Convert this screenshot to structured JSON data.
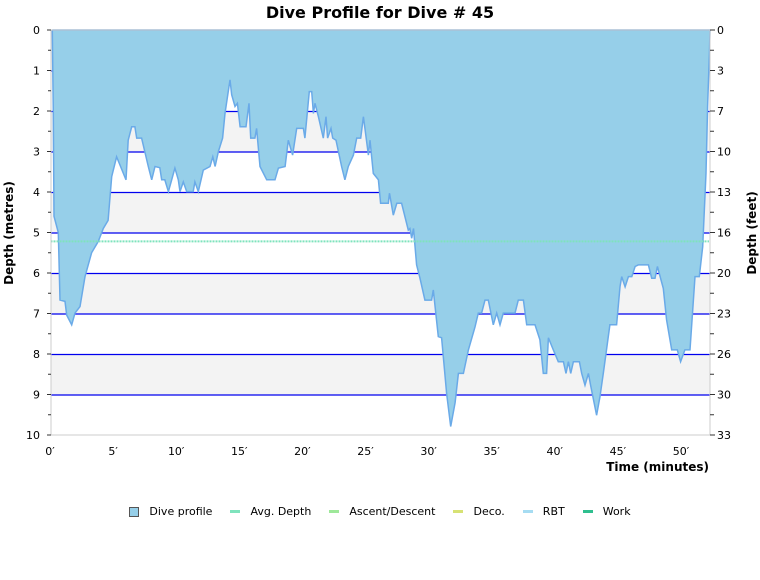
{
  "chart_data": {
    "type": "area",
    "title": "Dive Profile for Dive # 45",
    "xlabel": "Time (minutes)",
    "ylabel": "Depth (metres)",
    "ylabel_right": "Depth (feet)",
    "xlim": [
      0,
      52.3
    ],
    "ylim": [
      0,
      10
    ],
    "y_inverted": true,
    "grid": true,
    "x_ticks": [
      0,
      5,
      10,
      15,
      20,
      25,
      30,
      35,
      40,
      45,
      50
    ],
    "x_tick_labels": [
      "0′",
      "5′",
      "10′",
      "15′",
      "20′",
      "25′",
      "30′",
      "35′",
      "40′",
      "45′",
      "50′"
    ],
    "y_ticks": [
      0,
      1,
      2,
      3,
      4,
      5,
      6,
      7,
      8,
      9,
      10
    ],
    "y_tick_labels": [
      "0",
      "1",
      "2",
      "3",
      "4",
      "5",
      "6",
      "7",
      "8",
      "9",
      "10"
    ],
    "y_right_tick_labels": [
      "0",
      "3",
      "7",
      "10",
      "13",
      "16",
      "20",
      "23",
      "26",
      "30",
      "33"
    ],
    "avg_depth": 5.22,
    "legend_position": "bottom",
    "legend": [
      {
        "label": "Dive profile",
        "color": "#96cfe9",
        "kind": "box"
      },
      {
        "label": "Avg. Depth",
        "color": "#7fe3bd",
        "kind": "line"
      },
      {
        "label": "Ascent/Descent",
        "color": "#9ee89a",
        "kind": "line"
      },
      {
        "label": "Deco.",
        "color": "#d7e274",
        "kind": "line"
      },
      {
        "label": "RBT",
        "color": "#a6dcf2",
        "kind": "line"
      },
      {
        "label": "Work",
        "color": "#2fbf8f",
        "kind": "line"
      }
    ],
    "colors": {
      "fill": "#96cfe9",
      "line": "#6aaae8",
      "grid": "#0000ee",
      "band": "#f3f3f3",
      "avg": "#7fe3bd"
    },
    "series": [
      {
        "name": "Dive profile",
        "points": [
          [
            0.18,
            0
          ],
          [
            0.26,
            2.05
          ],
          [
            0.32,
            4.6
          ],
          [
            0.66,
            5.0
          ],
          [
            0.79,
            6.67
          ],
          [
            1.19,
            6.7
          ],
          [
            1.32,
            7.04
          ],
          [
            1.72,
            7.28
          ],
          [
            1.98,
            6.99
          ],
          [
            2.38,
            6.83
          ],
          [
            2.77,
            6.09
          ],
          [
            3.3,
            5.5
          ],
          [
            3.83,
            5.22
          ],
          [
            4.22,
            4.9
          ],
          [
            4.6,
            4.7
          ],
          [
            4.89,
            3.62
          ],
          [
            5.28,
            3.13
          ],
          [
            5.5,
            3.3
          ],
          [
            6.02,
            3.7
          ],
          [
            6.2,
            2.72
          ],
          [
            6.47,
            2.39
          ],
          [
            6.73,
            2.39
          ],
          [
            6.87,
            2.67
          ],
          [
            7.26,
            2.67
          ],
          [
            7.79,
            3.37
          ],
          [
            8.06,
            3.7
          ],
          [
            8.32,
            3.37
          ],
          [
            8.7,
            3.4
          ],
          [
            8.85,
            3.7
          ],
          [
            9.1,
            3.7
          ],
          [
            9.38,
            3.99
          ],
          [
            9.64,
            3.7
          ],
          [
            9.9,
            3.41
          ],
          [
            10.17,
            3.7
          ],
          [
            10.3,
            3.99
          ],
          [
            10.56,
            3.75
          ],
          [
            10.83,
            3.99
          ],
          [
            11.35,
            3.99
          ],
          [
            11.48,
            3.75
          ],
          [
            11.75,
            3.99
          ],
          [
            12.15,
            3.46
          ],
          [
            12.68,
            3.37
          ],
          [
            12.9,
            3.13
          ],
          [
            13.08,
            3.37
          ],
          [
            13.34,
            3.0
          ],
          [
            13.68,
            2.67
          ],
          [
            13.87,
            2.06
          ],
          [
            14.26,
            1.23
          ],
          [
            14.4,
            1.6
          ],
          [
            14.66,
            1.89
          ],
          [
            14.85,
            1.81
          ],
          [
            15.06,
            2.39
          ],
          [
            15.53,
            2.39
          ],
          [
            15.77,
            1.81
          ],
          [
            15.9,
            2.67
          ],
          [
            16.24,
            2.67
          ],
          [
            16.37,
            2.43
          ],
          [
            16.64,
            3.37
          ],
          [
            17.17,
            3.7
          ],
          [
            17.83,
            3.7
          ],
          [
            18.1,
            3.41
          ],
          [
            18.63,
            3.37
          ],
          [
            18.88,
            2.72
          ],
          [
            19.22,
            3.09
          ],
          [
            19.55,
            2.43
          ],
          [
            20.08,
            2.43
          ],
          [
            20.2,
            2.67
          ],
          [
            20.55,
            1.52
          ],
          [
            20.74,
            1.52
          ],
          [
            20.87,
            2.06
          ],
          [
            21.0,
            1.81
          ],
          [
            21.27,
            2.14
          ],
          [
            21.66,
            2.67
          ],
          [
            21.87,
            2.14
          ],
          [
            22.0,
            2.67
          ],
          [
            22.27,
            2.43
          ],
          [
            22.4,
            2.67
          ],
          [
            22.66,
            2.72
          ],
          [
            23.11,
            3.37
          ],
          [
            23.37,
            3.7
          ],
          [
            23.64,
            3.37
          ],
          [
            24.04,
            3.09
          ],
          [
            24.3,
            2.67
          ],
          [
            24.62,
            2.67
          ],
          [
            24.83,
            2.14
          ],
          [
            25.23,
            3.09
          ],
          [
            25.36,
            2.72
          ],
          [
            25.62,
            3.54
          ],
          [
            26.02,
            3.7
          ],
          [
            26.2,
            4.28
          ],
          [
            26.81,
            4.28
          ],
          [
            26.9,
            4.03
          ],
          [
            27.2,
            4.57
          ],
          [
            27.48,
            4.28
          ],
          [
            27.86,
            4.28
          ],
          [
            28.39,
            4.94
          ],
          [
            28.52,
            4.9
          ],
          [
            28.66,
            5.14
          ],
          [
            28.8,
            4.9
          ],
          [
            29.05,
            5.8
          ],
          [
            29.32,
            6.13
          ],
          [
            29.71,
            6.67
          ],
          [
            30.24,
            6.67
          ],
          [
            30.37,
            6.42
          ],
          [
            30.77,
            7.57
          ],
          [
            31.03,
            7.6
          ],
          [
            31.43,
            8.97
          ],
          [
            31.75,
            9.79
          ],
          [
            32.1,
            9.2
          ],
          [
            32.36,
            8.48
          ],
          [
            32.76,
            8.48
          ],
          [
            33.15,
            7.9
          ],
          [
            33.68,
            7.33
          ],
          [
            33.94,
            6.99
          ],
          [
            34.2,
            6.99
          ],
          [
            34.47,
            6.67
          ],
          [
            34.73,
            6.67
          ],
          [
            35.13,
            7.28
          ],
          [
            35.4,
            6.99
          ],
          [
            35.66,
            7.28
          ],
          [
            35.92,
            6.99
          ],
          [
            36.85,
            6.99
          ],
          [
            37.11,
            6.67
          ],
          [
            37.51,
            6.67
          ],
          [
            37.77,
            7.28
          ],
          [
            38.43,
            7.28
          ],
          [
            38.82,
            7.65
          ],
          [
            39.09,
            8.48
          ],
          [
            39.35,
            8.48
          ],
          [
            39.49,
            7.6
          ],
          [
            39.88,
            7.9
          ],
          [
            40.28,
            8.19
          ],
          [
            40.68,
            8.19
          ],
          [
            40.89,
            8.48
          ],
          [
            41.08,
            8.19
          ],
          [
            41.26,
            8.48
          ],
          [
            41.47,
            8.19
          ],
          [
            41.95,
            8.19
          ],
          [
            42.13,
            8.48
          ],
          [
            42.39,
            8.77
          ],
          [
            42.66,
            8.48
          ],
          [
            42.84,
            8.77
          ],
          [
            43.31,
            9.51
          ],
          [
            43.58,
            9.05
          ],
          [
            43.84,
            8.48
          ],
          [
            44.1,
            7.9
          ],
          [
            44.37,
            7.28
          ],
          [
            44.9,
            7.28
          ],
          [
            45.17,
            6.34
          ],
          [
            45.3,
            6.09
          ],
          [
            45.57,
            6.34
          ],
          [
            45.83,
            6.09
          ],
          [
            46.1,
            6.09
          ],
          [
            46.36,
            5.84
          ],
          [
            46.62,
            5.8
          ],
          [
            47.42,
            5.8
          ],
          [
            47.68,
            6.13
          ],
          [
            47.94,
            6.13
          ],
          [
            48.13,
            5.84
          ],
          [
            48.6,
            6.38
          ],
          [
            48.86,
            7.16
          ],
          [
            49.26,
            7.9
          ],
          [
            49.71,
            7.9
          ],
          [
            49.97,
            8.19
          ],
          [
            50.31,
            7.9
          ],
          [
            50.71,
            7.9
          ],
          [
            51.11,
            6.09
          ],
          [
            51.45,
            6.09
          ],
          [
            51.72,
            5.35
          ],
          [
            51.98,
            3.54
          ],
          [
            52.11,
            1.89
          ],
          [
            52.25,
            0.58
          ],
          [
            52.3,
            0
          ]
        ]
      }
    ]
  }
}
